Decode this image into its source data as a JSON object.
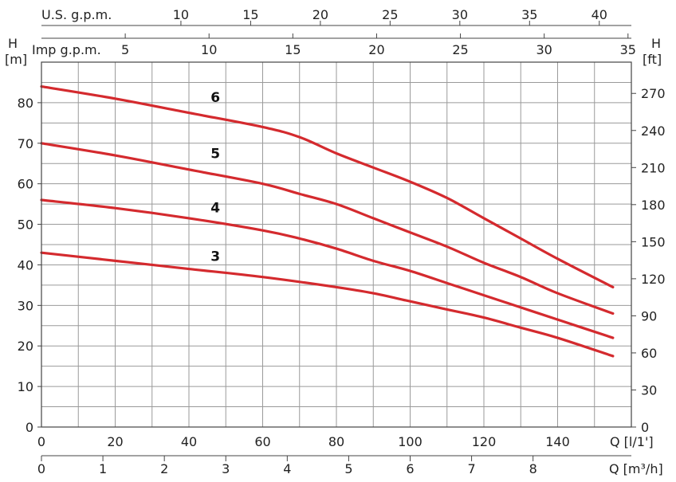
{
  "chart_data": {
    "type": "line",
    "x_label": "Q [l/1']",
    "x_range": [
      0,
      160
    ],
    "x_ticks": [
      0,
      20,
      40,
      60,
      80,
      100,
      120,
      140
    ],
    "grid": true,
    "left_axis": {
      "label_top": "H",
      "unit": "[m]",
      "range": [
        0,
        90
      ],
      "ticks": [
        0,
        10,
        20,
        30,
        40,
        50,
        60,
        70,
        80
      ]
    },
    "right_axis": {
      "label_top": "H",
      "unit": "[ft]",
      "range": [
        0,
        295.3
      ],
      "ticks": [
        0,
        30,
        60,
        90,
        120,
        150,
        180,
        210,
        240,
        270
      ]
    },
    "secondary_x_axes": [
      {
        "label": "Q [m³/h]",
        "position": "bottom",
        "range": [
          0,
          9.6
        ],
        "ticks": [
          0,
          1,
          2,
          3,
          4,
          5,
          6,
          7,
          8
        ]
      },
      {
        "label": "Imp g.p.m.",
        "position": "top",
        "range": [
          0,
          35.2
        ],
        "ticks": [
          5,
          10,
          15,
          20,
          25,
          30,
          35
        ]
      },
      {
        "label": "U.S. g.p.m.",
        "position": "top",
        "range": [
          0,
          42.3
        ],
        "ticks": [
          10,
          15,
          20,
          25,
          30,
          35,
          40
        ]
      }
    ],
    "series": [
      {
        "name": "6",
        "x": [
          0,
          20,
          40,
          60,
          70,
          80,
          90,
          100,
          110,
          120,
          130,
          140,
          155
        ],
        "y": [
          84,
          81,
          77.5,
          74,
          71.5,
          67.5,
          64,
          60.5,
          56.5,
          51.5,
          46.5,
          41.5,
          34.5
        ]
      },
      {
        "name": "5",
        "x": [
          0,
          20,
          40,
          60,
          70,
          80,
          90,
          100,
          110,
          120,
          130,
          140,
          155
        ],
        "y": [
          70,
          67,
          63.5,
          60,
          57.5,
          55,
          51.5,
          48,
          44.5,
          40.5,
          37,
          33,
          28
        ]
      },
      {
        "name": "4",
        "x": [
          0,
          20,
          40,
          60,
          70,
          80,
          90,
          100,
          110,
          120,
          130,
          140,
          155
        ],
        "y": [
          56,
          54,
          51.5,
          48.5,
          46.5,
          44,
          41,
          38.5,
          35.5,
          32.5,
          29.5,
          26.5,
          22
        ]
      },
      {
        "name": "3",
        "x": [
          0,
          20,
          40,
          60,
          80,
          90,
          100,
          110,
          120,
          130,
          140,
          155
        ],
        "y": [
          43,
          41,
          39,
          37,
          34.5,
          33,
          31,
          29,
          27,
          24.5,
          22,
          17.5
        ]
      }
    ],
    "series_label_positions": [
      {
        "name": "6",
        "x": 45,
        "y": 80.2
      },
      {
        "name": "5",
        "x": 45,
        "y": 66.3
      },
      {
        "name": "4",
        "x": 45,
        "y": 53
      },
      {
        "name": "3",
        "x": 45,
        "y": 41
      }
    ],
    "colors": {
      "series": "#d42a2e",
      "grid": "#9a9a9a",
      "text": "#222222"
    }
  }
}
